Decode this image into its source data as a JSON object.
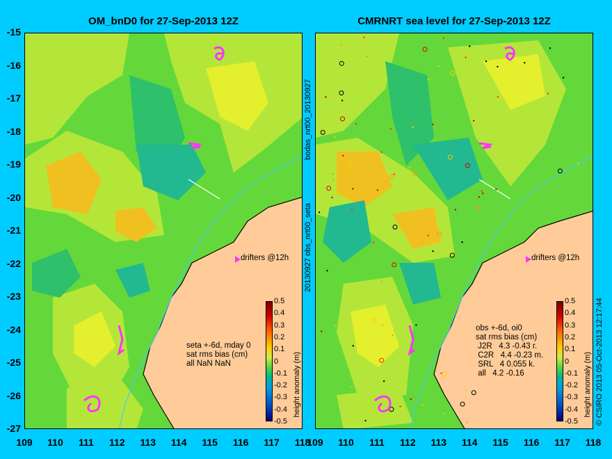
{
  "left_panel": {
    "title": "OM_bnD0 for 27-Sep-2013 12Z",
    "drifters_label": "drifters @12h",
    "annotation": [
      "seta +-6d, mday 0",
      "sat rms bias (cm)",
      "all NaN NaN"
    ]
  },
  "right_panel": {
    "title": "CMRNRT sea level  for 27-Sep-2013 12Z",
    "drifters_label": "drifters @12h",
    "annotation": [
      "obs +-6d, oi0",
      "sat rms bias (cm)",
      " J2R   4.3 -0.43 r.",
      " C2R   4.4 -0.23 m.",
      " SRL   4 0.055 k.",
      " all   4.2 -0.16"
    ]
  },
  "side_labels": {
    "left_vertical_top": "bodas_nrt00_20130927",
    "left_vertical_bottom": "20130927 obs_nrt00_seta",
    "right_vertical": "© CSIRO 2013   05-Oct-2013 12:17:44"
  },
  "colorbar": {
    "label": "height anomaly (m)",
    "ticks": [
      "0.5",
      "0.4",
      "0.3",
      "0.2",
      "0.1",
      "0",
      "-0.1",
      "-0.2",
      "-0.3",
      "-0.4",
      "-0.5"
    ],
    "colors": [
      "#7a0000",
      "#d40000",
      "#ff6600",
      "#ffcc00",
      "#cfe94a",
      "#53d83b",
      "#00b894",
      "#00a0e0",
      "#0060d0",
      "#00007a"
    ]
  },
  "axes": {
    "lat_labels": [
      "-15",
      "-16",
      "-17",
      "-18",
      "-19",
      "-20",
      "-21",
      "-22",
      "-23",
      "-24",
      "-25",
      "-26",
      "-27"
    ],
    "lon_labels_left": [
      "109",
      "110",
      "111",
      "112",
      "113",
      "114",
      "115",
      "116",
      "117",
      "118"
    ],
    "lon_labels_right": [
      "109",
      "110",
      "111",
      "112",
      "113",
      "114",
      "115",
      "116",
      "117",
      "118"
    ],
    "lat_range": [
      -27,
      -15
    ],
    "lon_range": [
      109,
      118
    ]
  },
  "colors": {
    "background": "#00ccff",
    "land": "#ffcc99",
    "drifters": "#ff33ff",
    "coast_line": "#44ccee"
  }
}
